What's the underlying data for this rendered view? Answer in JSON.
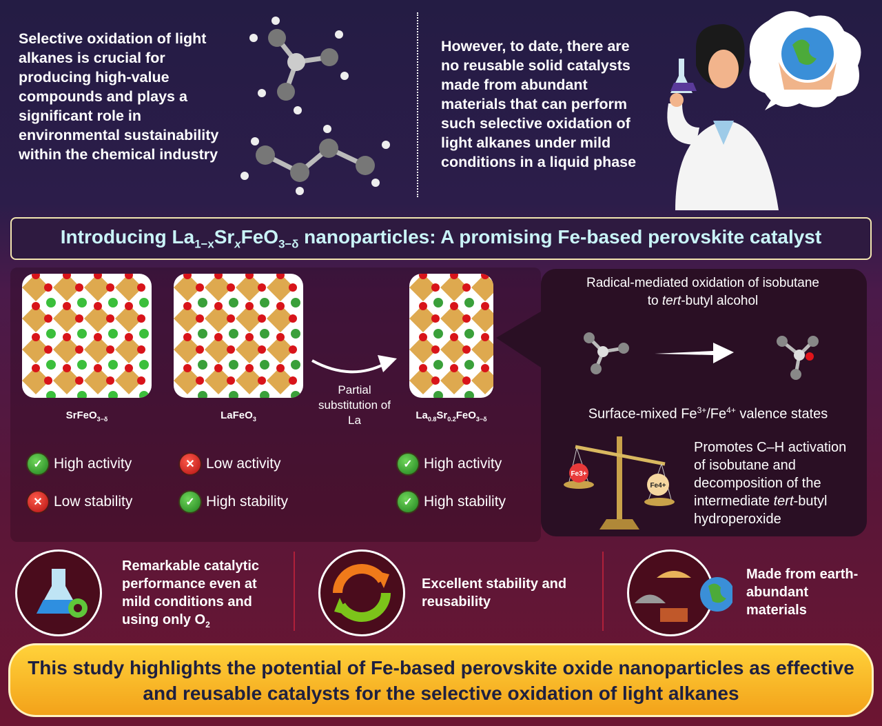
{
  "intro_left": "Selective oxidation of light alkanes is crucial for producing high-value compounds and plays a significant role in environmental sustainability within the chemical industry",
  "intro_right": "However, to date, there are no reusable solid catalysts made from abundant materials that can perform such selective oxidation of light alkanes under mild conditions in a liquid phase",
  "banner": {
    "pre": "Introducing La",
    "s1": "1−x",
    "m1": "Sr",
    "s2": "x",
    "m2": "FeO",
    "s3": "3−δ",
    "post": " nanoparticles: A promising Fe-based perovskite catalyst"
  },
  "materials": [
    {
      "name": "SrFeO",
      "sub": "3−δ",
      "activity": "High activity",
      "activity_ok": true,
      "stability": "Low stability",
      "stability_ok": false
    },
    {
      "name": "LaFeO",
      "sub": "3",
      "activity": "Low activity",
      "activity_ok": false,
      "stability": "High stability",
      "stability_ok": true
    },
    {
      "name_parts": [
        "La",
        "0.8",
        "Sr",
        "0.2",
        "FeO",
        "3−δ"
      ],
      "activity": "High activity",
      "activity_ok": true,
      "stability": "High stability",
      "stability_ok": true
    }
  ],
  "substitution": "Partial substitution of La",
  "mechanism": {
    "title_1": "Radical-mediated oxidation of isobutane",
    "title_2a": "to ",
    "title_2i": "tert",
    "title_2b": "-butyl alcohol",
    "valence": {
      "a": "Surface-mixed Fe",
      "s1": "3+",
      "b": "/Fe",
      "s2": "4+",
      "c": " valence states"
    },
    "fe3": "Fe3+",
    "fe4": "Fe4+",
    "promotes": "Promotes C–H activation of isobutane and decomposition of the intermediate",
    "promotes_i": "tert",
    "promotes_end": "-butyl hydroperoxide"
  },
  "benefits": [
    {
      "text": "Remarkable catalytic performance even at mild conditions and using only O",
      "sub": "2",
      "icon": "flask-gear-icon"
    },
    {
      "text": "Excellent stability and reusability",
      "icon": "recycle-arrows-icon"
    },
    {
      "text": "Made from earth-abundant materials",
      "icon": "earth-materials-icon"
    }
  ],
  "conclusion": "This study highlights the potential of Fe-based perovskite oxide nanoparticles as effective and reusable catalysts for the selective oxidation of light alkanes",
  "colors": {
    "banner_text": "#c9f4f7",
    "check": "#2e9a22",
    "cross": "#d41a14",
    "final_bg": "#f8c02a"
  }
}
